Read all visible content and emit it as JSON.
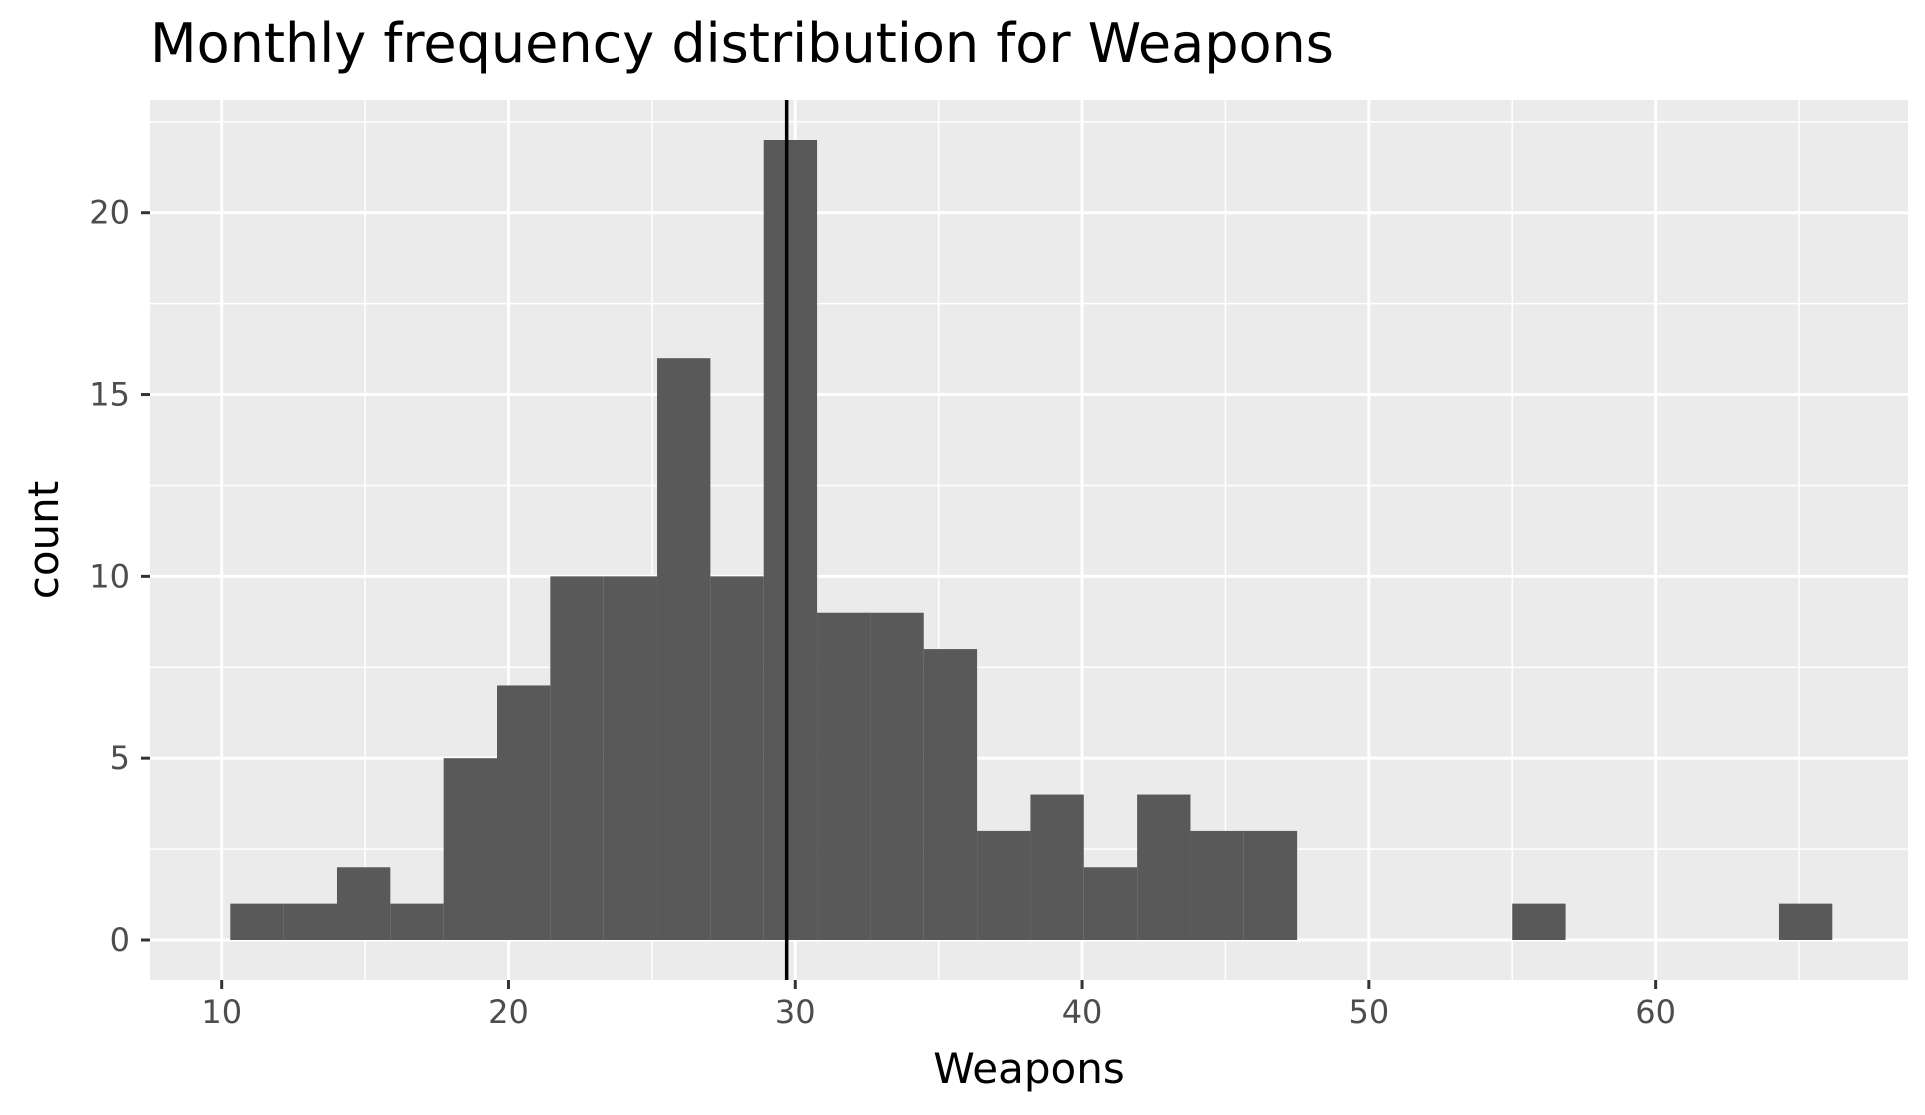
{
  "chart_data": {
    "type": "bar",
    "title": "Monthly frequency distribution for Weapons",
    "xlabel": "Weapons",
    "ylabel": "count",
    "xlim": [
      7.5,
      68.8
    ],
    "ylim": [
      -1.1,
      23.1
    ],
    "x_ticks": [
      10,
      20,
      30,
      40,
      50,
      60
    ],
    "y_ticks": [
      0,
      5,
      10,
      15,
      20
    ],
    "bin_width": 1.86,
    "bins": [
      {
        "x0": 10.3,
        "x1": 12.16,
        "count": 1
      },
      {
        "x0": 12.16,
        "x1": 14.02,
        "count": 1
      },
      {
        "x0": 14.02,
        "x1": 15.88,
        "count": 2
      },
      {
        "x0": 15.88,
        "x1": 17.74,
        "count": 1
      },
      {
        "x0": 17.74,
        "x1": 19.6,
        "count": 5
      },
      {
        "x0": 19.6,
        "x1": 21.46,
        "count": 7
      },
      {
        "x0": 21.46,
        "x1": 23.32,
        "count": 10
      },
      {
        "x0": 23.32,
        "x1": 25.18,
        "count": 10
      },
      {
        "x0": 25.18,
        "x1": 27.04,
        "count": 16
      },
      {
        "x0": 27.04,
        "x1": 28.9,
        "count": 10
      },
      {
        "x0": 28.9,
        "x1": 30.76,
        "count": 22
      },
      {
        "x0": 30.76,
        "x1": 32.62,
        "count": 9
      },
      {
        "x0": 32.62,
        "x1": 34.48,
        "count": 9
      },
      {
        "x0": 34.48,
        "x1": 36.34,
        "count": 8
      },
      {
        "x0": 36.34,
        "x1": 38.2,
        "count": 3
      },
      {
        "x0": 38.2,
        "x1": 40.06,
        "count": 4
      },
      {
        "x0": 40.06,
        "x1": 41.92,
        "count": 2
      },
      {
        "x0": 41.92,
        "x1": 43.78,
        "count": 4
      },
      {
        "x0": 43.78,
        "x1": 45.64,
        "count": 3
      },
      {
        "x0": 45.64,
        "x1": 47.5,
        "count": 3
      },
      {
        "x0": 55.0,
        "x1": 56.86,
        "count": 1
      },
      {
        "x0": 64.3,
        "x1": 66.16,
        "count": 1
      }
    ],
    "vline": {
      "x": 29.7
    },
    "grid": true,
    "colors": {
      "panel": "#ebebeb",
      "grid": "#ffffff",
      "bar": "#595959",
      "vline": "#000000"
    }
  }
}
